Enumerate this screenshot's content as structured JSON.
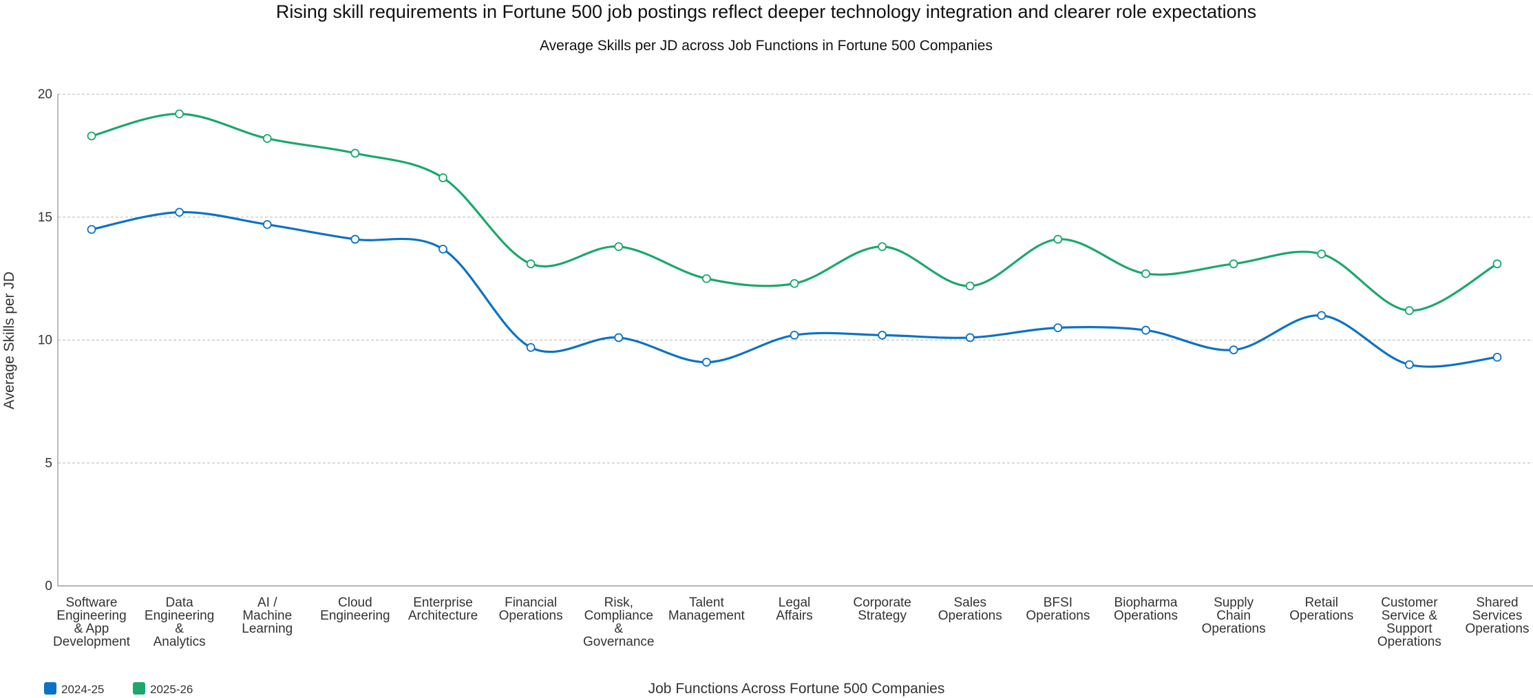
{
  "chart_data": {
    "type": "line",
    "title": "Rising skill requirements in Fortune 500 job postings reflect deeper technology integration and clearer role expectations",
    "subtitle": "Average Skills per JD across Job Functions in Fortune 500 Companies",
    "xlabel": "Job Functions Across Fortune 500 Companies",
    "ylabel": "Average Skills per JD",
    "ylim": [
      0,
      20
    ],
    "yticks": [
      "0",
      "5",
      "10",
      "15",
      "20"
    ],
    "grid": true,
    "legend_position": "bottom-left",
    "categories": [
      "Software Engineering & App Development",
      "Data Engineering & Analytics",
      "AI / Machine Learning",
      "Cloud Engineering",
      "Enterprise Architecture",
      "Financial Operations",
      "Risk, Compliance & Governance",
      "Talent Management",
      "Legal Affairs",
      "Corporate Strategy",
      "Sales Operations",
      "BFSI Operations",
      "Biopharma Operations",
      "Supply Chain Operations",
      "Retail Operations",
      "Customer Service & Support Operations",
      "Shared Services Operations"
    ],
    "category_label_lines": [
      [
        "Software",
        "Engineering",
        "& App",
        "Development"
      ],
      [
        "Data",
        "Engineering",
        "&",
        "Analytics"
      ],
      [
        "AI /",
        "Machine",
        "Learning"
      ],
      [
        "Cloud",
        "Engineering"
      ],
      [
        "Enterprise",
        "Architecture"
      ],
      [
        "Financial",
        "Operations"
      ],
      [
        "Risk,",
        "Compliance",
        "&",
        "Governance"
      ],
      [
        "Talent",
        "Management"
      ],
      [
        "Legal",
        "Affairs"
      ],
      [
        "Corporate",
        "Strategy"
      ],
      [
        "Sales",
        "Operations"
      ],
      [
        "BFSI",
        "Operations"
      ],
      [
        "Biopharma",
        "Operations"
      ],
      [
        "Supply",
        "Chain",
        "Operations"
      ],
      [
        "Retail",
        "Operations"
      ],
      [
        "Customer",
        "Service &",
        "Support",
        "Operations"
      ],
      [
        "Shared",
        "Services",
        "Operations"
      ]
    ],
    "series": [
      {
        "name": "2024-25",
        "color": "#0b72c6",
        "values": [
          14.5,
          15.2,
          14.7,
          14.1,
          13.7,
          9.7,
          10.1,
          9.1,
          10.2,
          10.2,
          10.1,
          10.5,
          10.4,
          9.6,
          11.0,
          9.0,
          9.3
        ]
      },
      {
        "name": "2025-26",
        "color": "#1aa86b",
        "values": [
          18.3,
          19.2,
          18.2,
          17.6,
          16.6,
          13.1,
          13.8,
          12.5,
          12.3,
          13.8,
          12.2,
          14.1,
          12.7,
          13.1,
          13.5,
          11.2,
          13.1
        ]
      }
    ]
  }
}
